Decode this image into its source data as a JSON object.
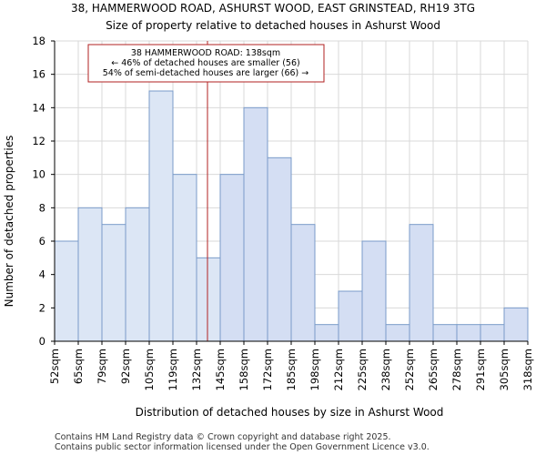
{
  "chart_data": {
    "type": "bar",
    "title": "38, HAMMERWOOD ROAD, ASHURST WOOD, EAST GRINSTEAD, RH19 3TG",
    "subtitle": "Size of property relative to detached houses in Ashurst Wood",
    "xlabel": "Distribution of detached houses by size in Ashurst Wood",
    "ylabel": "Number of detached properties",
    "ylim": [
      0,
      18
    ],
    "yticks": [
      0,
      2,
      4,
      6,
      8,
      10,
      12,
      14,
      16,
      18
    ],
    "bin_edges": [
      52,
      65,
      79,
      92,
      105,
      119,
      132,
      145,
      158,
      172,
      185,
      198,
      212,
      225,
      238,
      252,
      265,
      278,
      291,
      305,
      318
    ],
    "tick_labels": [
      "52sqm",
      "65sqm",
      "79sqm",
      "92sqm",
      "105sqm",
      "119sqm",
      "132sqm",
      "145sqm",
      "158sqm",
      "172sqm",
      "185sqm",
      "198sqm",
      "212sqm",
      "225sqm",
      "238sqm",
      "252sqm",
      "265sqm",
      "278sqm",
      "291sqm",
      "305sqm",
      "318sqm"
    ],
    "values": [
      6,
      8,
      7,
      8,
      15,
      10,
      5,
      10,
      14,
      11,
      7,
      1,
      3,
      6,
      1,
      7,
      1,
      1,
      1,
      2
    ],
    "highlight_bin_range": [
      0,
      6
    ],
    "grid": true,
    "marker": {
      "value": 138,
      "label": "38 HAMMERWOOD ROAD: 138sqm"
    },
    "annotation": {
      "line1": "38 HAMMERWOOD ROAD: 138sqm",
      "line2": "← 46% of detached houses are smaller (56)",
      "line3": "54% of semi-detached houses are larger (66) →"
    }
  },
  "footer": {
    "line1": "Contains HM Land Registry data © Crown copyright and database right 2025.",
    "line2": "Contains public sector information licensed under the Open Government Licence v3.0."
  },
  "colors": {
    "bar_left_fill": "#dce6f5",
    "bar_right_fill": "#d4def3",
    "bar_stroke": "#7a9bc9",
    "grid": "#d9d9d9",
    "marker": "#b22222",
    "annotation_border": "#b22222"
  }
}
